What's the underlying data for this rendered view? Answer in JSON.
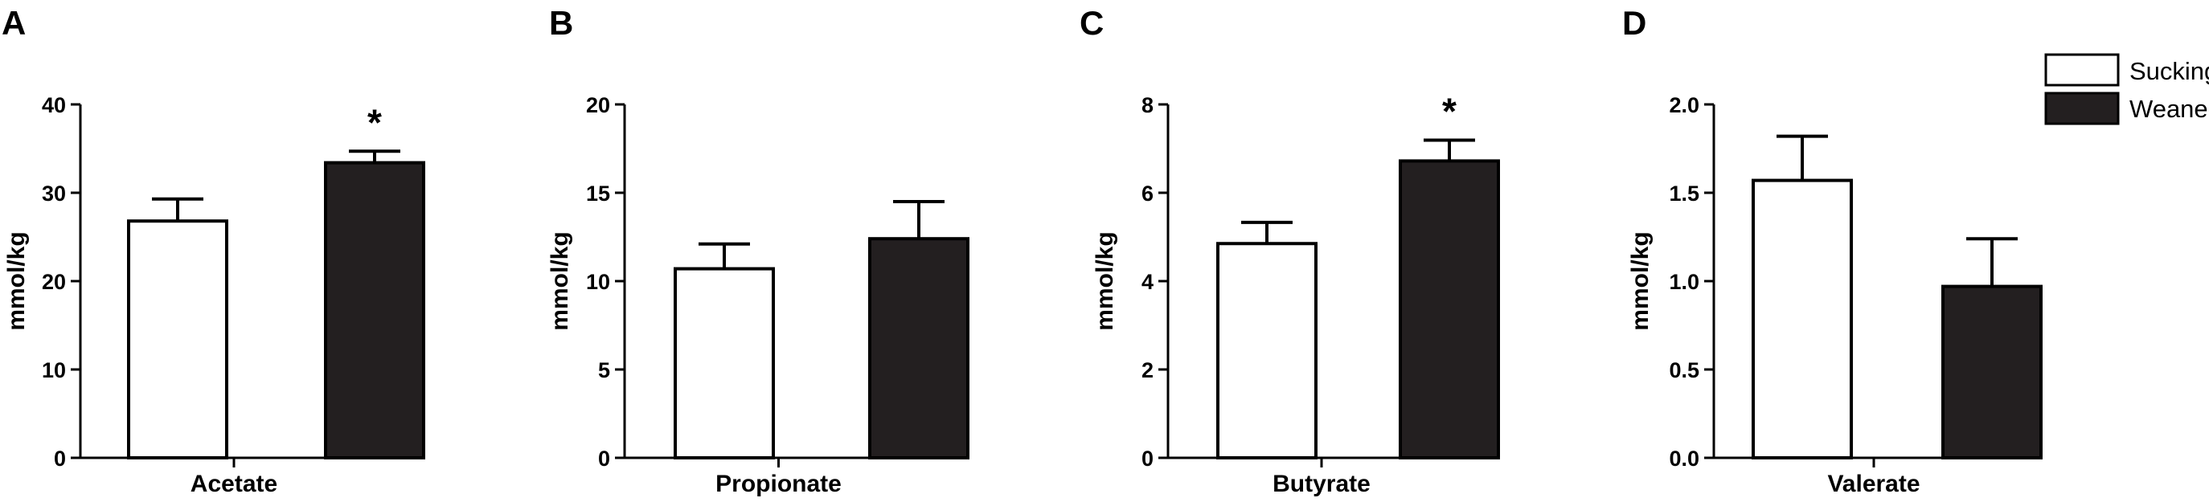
{
  "colors": {
    "sucking_fill": "#ffffff",
    "weaned_fill": "#231f20",
    "stroke": "#000000"
  },
  "legend": {
    "placement": "top-right",
    "items": [
      {
        "label": "Sucking",
        "color": "#ffffff"
      },
      {
        "label": "Weaned",
        "color": "#231f20"
      }
    ]
  },
  "chart_data": [
    {
      "panel": "A",
      "type": "bar",
      "ylabel": "mmol/kg",
      "xlabel": "Acetate",
      "ylim": [
        0,
        40
      ],
      "yticks": [
        "0",
        "10",
        "20",
        "30",
        "40"
      ],
      "series": [
        {
          "name": "Sucking",
          "value": 26.8,
          "error": 2.5,
          "sig": ""
        },
        {
          "name": "Weaned",
          "value": 33.4,
          "error": 1.3,
          "sig": "*"
        }
      ]
    },
    {
      "panel": "B",
      "type": "bar",
      "ylabel": "mmol/kg",
      "xlabel": "Propionate",
      "ylim": [
        0,
        20
      ],
      "yticks": [
        "0",
        "5",
        "10",
        "15",
        "20"
      ],
      "series": [
        {
          "name": "Sucking",
          "value": 10.7,
          "error": 1.4,
          "sig": ""
        },
        {
          "name": "Weaned",
          "value": 12.4,
          "error": 2.1,
          "sig": ""
        }
      ]
    },
    {
      "panel": "C",
      "type": "bar",
      "ylabel": "mmol/kg",
      "xlabel": "Butyrate",
      "ylim": [
        0,
        8
      ],
      "yticks": [
        "0",
        "2",
        "4",
        "6",
        "8"
      ],
      "series": [
        {
          "name": "Sucking",
          "value": 4.85,
          "error": 0.48,
          "sig": ""
        },
        {
          "name": "Weaned",
          "value": 6.72,
          "error": 0.47,
          "sig": "*"
        }
      ]
    },
    {
      "panel": "D",
      "type": "bar",
      "ylabel": "mmol/kg",
      "xlabel": "Valerate",
      "ylim": [
        0,
        2
      ],
      "yticks": [
        "0.0",
        "0.5",
        "1.0",
        "1.5",
        "2.0"
      ],
      "series": [
        {
          "name": "Sucking",
          "value": 1.57,
          "error": 0.25,
          "sig": ""
        },
        {
          "name": "Weaned",
          "value": 0.97,
          "error": 0.27,
          "sig": ""
        }
      ]
    }
  ]
}
